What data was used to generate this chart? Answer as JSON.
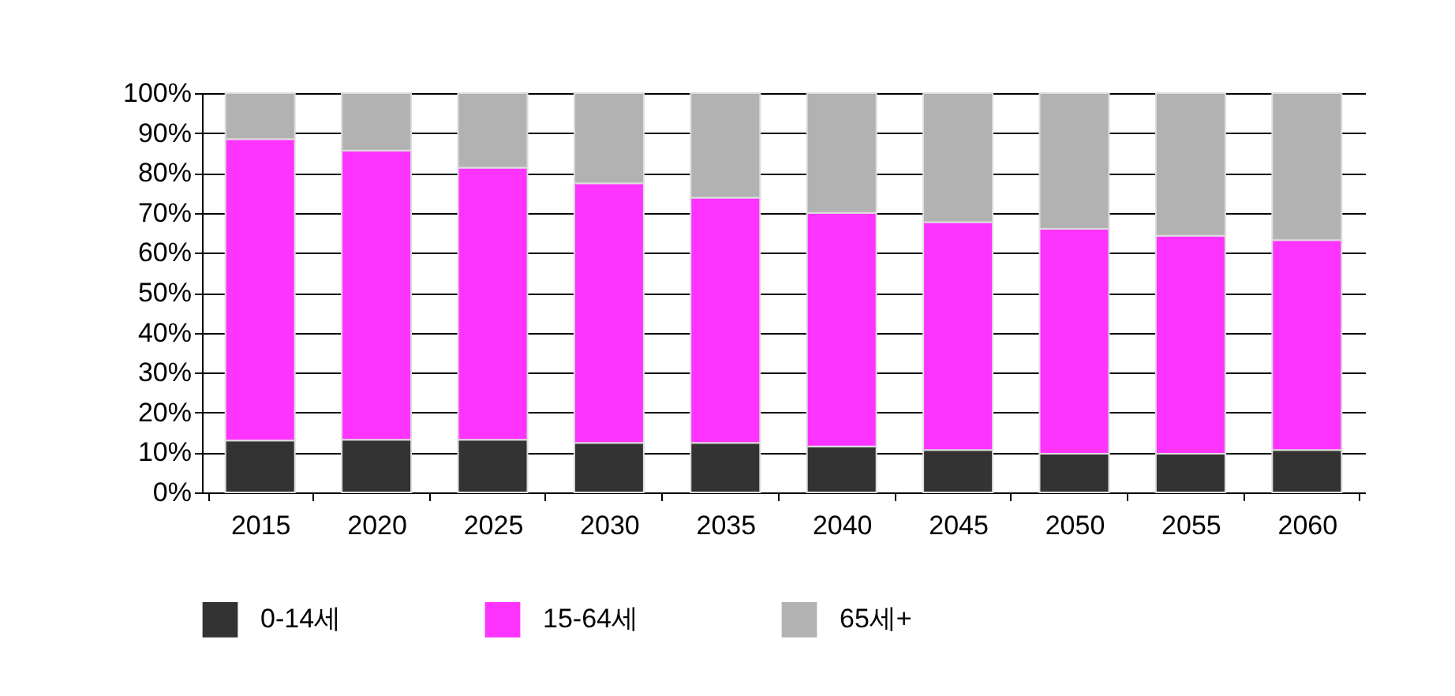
{
  "chart_data": {
    "type": "bar",
    "stacked": true,
    "categories": [
      "2015",
      "2020",
      "2025",
      "2030",
      "2035",
      "2040",
      "2045",
      "2050",
      "2055",
      "2060"
    ],
    "series": [
      {
        "name": "0-14세",
        "color": "#333333",
        "values": [
          13,
          13.2,
          13.2,
          12.4,
          12.4,
          11.5,
          10.6,
          9.7,
          9.7,
          10.6
        ]
      },
      {
        "name": "15-64세",
        "color": "#ff33ff",
        "values": [
          75.5,
          72.4,
          68.1,
          65,
          61.4,
          58.5,
          57.1,
          56.3,
          54.6,
          52.6
        ]
      },
      {
        "name": "65세+",
        "color": "#b2b2b2",
        "values": [
          11.5,
          14.4,
          18.7,
          22.6,
          26.2,
          30,
          32.3,
          34,
          35.7,
          36.8
        ]
      }
    ],
    "ylim": [
      0,
      100
    ],
    "yticks": [
      {
        "value": 0,
        "label": "0%"
      },
      {
        "value": 10,
        "label": "10%"
      },
      {
        "value": 20,
        "label": "20%"
      },
      {
        "value": 30,
        "label": "30%"
      },
      {
        "value": 40,
        "label": "40%"
      },
      {
        "value": 50,
        "label": "50%"
      },
      {
        "value": 60,
        "label": "60%"
      },
      {
        "value": 70,
        "label": "70%"
      },
      {
        "value": 80,
        "label": "80%"
      },
      {
        "value": 90,
        "label": "90%"
      },
      {
        "value": 100,
        "label": "100%"
      }
    ],
    "grid": "y",
    "legend": "bottom"
  }
}
